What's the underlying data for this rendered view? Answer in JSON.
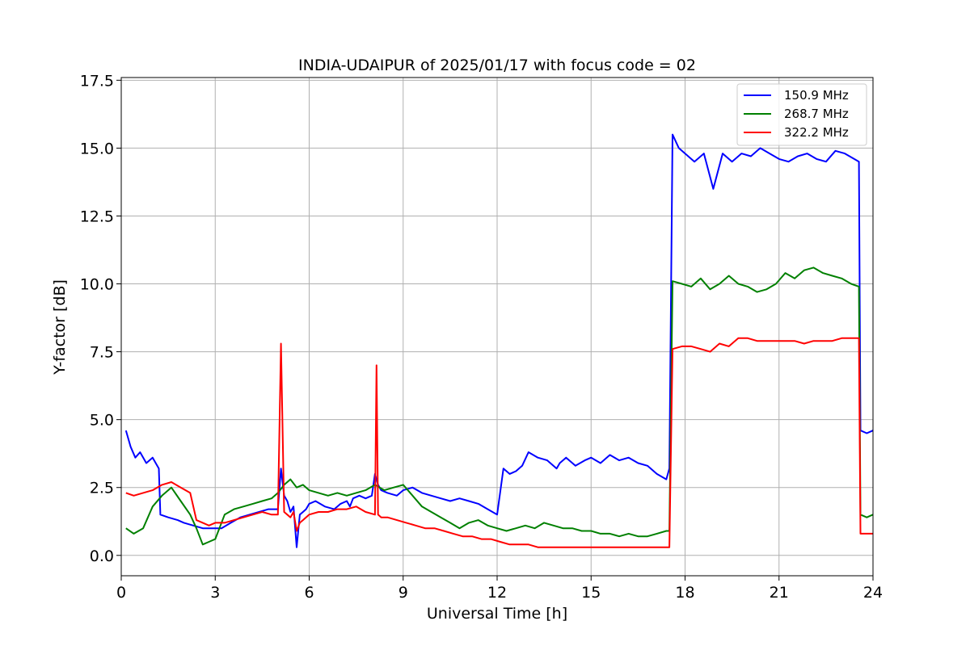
{
  "chart_data": {
    "type": "line",
    "title": "INDIA-UDAIPUR of 2025/01/17 with focus code = 02",
    "xlabel": "Universal Time [h]",
    "ylabel": "Y-factor [dB]",
    "xlim": [
      0,
      24
    ],
    "ylim": [
      -0.75,
      17.6
    ],
    "xticks": [
      0,
      3,
      6,
      9,
      12,
      15,
      18,
      21,
      24
    ],
    "yticks": [
      0.0,
      2.5,
      5.0,
      7.5,
      10.0,
      12.5,
      15.0,
      17.5
    ],
    "xtick_labels": [
      "0",
      "3",
      "6",
      "9",
      "12",
      "15",
      "18",
      "21",
      "24"
    ],
    "ytick_labels": [
      "0.0",
      "2.5",
      "5.0",
      "7.5",
      "10.0",
      "12.5",
      "15.0",
      "17.5"
    ],
    "grid": true,
    "legend_position": "top-right",
    "series": [
      {
        "name": "150.9 MHz",
        "color": "#0000ff",
        "x": [
          0.15,
          0.3,
          0.45,
          0.6,
          0.8,
          1.0,
          1.2,
          1.25,
          1.5,
          1.8,
          2.0,
          2.3,
          2.6,
          2.9,
          3.2,
          3.5,
          3.8,
          4.1,
          4.4,
          4.7,
          5.0,
          5.1,
          5.2,
          5.3,
          5.4,
          5.5,
          5.6,
          5.7,
          5.8,
          5.9,
          6.0,
          6.2,
          6.5,
          6.8,
          7.0,
          7.2,
          7.3,
          7.4,
          7.6,
          7.8,
          8.0,
          8.1,
          8.2,
          8.3,
          8.5,
          8.8,
          9.0,
          9.3,
          9.6,
          9.9,
          10.2,
          10.5,
          10.8,
          11.1,
          11.4,
          11.7,
          12.0,
          12.2,
          12.4,
          12.6,
          12.8,
          13.0,
          13.3,
          13.6,
          13.9,
          14.0,
          14.2,
          14.5,
          14.8,
          15.0,
          15.3,
          15.6,
          15.9,
          16.2,
          16.5,
          16.8,
          17.1,
          17.4,
          17.5,
          17.6,
          17.8,
          18.0,
          18.3,
          18.6,
          18.9,
          19.2,
          19.5,
          19.8,
          20.1,
          20.4,
          20.7,
          21.0,
          21.3,
          21.6,
          21.9,
          22.2,
          22.5,
          22.8,
          23.1,
          23.4,
          23.55,
          23.6,
          23.8,
          24.0
        ],
        "values": [
          4.6,
          4.0,
          3.6,
          3.8,
          3.4,
          3.6,
          3.2,
          1.5,
          1.4,
          1.3,
          1.2,
          1.1,
          1.0,
          1.0,
          1.0,
          1.2,
          1.4,
          1.5,
          1.6,
          1.7,
          1.7,
          3.2,
          2.2,
          2.0,
          1.6,
          1.8,
          0.3,
          1.5,
          1.6,
          1.7,
          1.9,
          2.0,
          1.8,
          1.7,
          1.9,
          2.0,
          1.8,
          2.1,
          2.2,
          2.1,
          2.2,
          3.0,
          2.6,
          2.4,
          2.3,
          2.2,
          2.4,
          2.5,
          2.3,
          2.2,
          2.1,
          2.0,
          2.1,
          2.0,
          1.9,
          1.7,
          1.5,
          3.2,
          3.0,
          3.1,
          3.3,
          3.8,
          3.6,
          3.5,
          3.2,
          3.4,
          3.6,
          3.3,
          3.5,
          3.6,
          3.4,
          3.7,
          3.5,
          3.6,
          3.4,
          3.3,
          3.0,
          2.8,
          3.2,
          15.5,
          15.0,
          14.8,
          14.5,
          14.8,
          13.5,
          14.8,
          14.5,
          14.8,
          14.7,
          15.0,
          14.8,
          14.6,
          14.5,
          14.7,
          14.8,
          14.6,
          14.5,
          14.9,
          14.8,
          14.6,
          14.5,
          4.6,
          4.5,
          4.6
        ]
      },
      {
        "name": "268.7 MHz",
        "color": "#008000",
        "x": [
          0.15,
          0.4,
          0.7,
          1.0,
          1.3,
          1.6,
          1.9,
          2.2,
          2.4,
          2.6,
          2.8,
          3.0,
          3.3,
          3.6,
          3.9,
          4.2,
          4.5,
          4.8,
          5.0,
          5.2,
          5.4,
          5.6,
          5.8,
          6.0,
          6.3,
          6.6,
          6.9,
          7.2,
          7.5,
          7.8,
          8.1,
          8.4,
          8.7,
          9.0,
          9.3,
          9.6,
          9.9,
          10.2,
          10.5,
          10.8,
          11.1,
          11.4,
          11.7,
          12.0,
          12.3,
          12.6,
          12.9,
          13.2,
          13.5,
          13.8,
          14.1,
          14.4,
          14.7,
          15.0,
          15.3,
          15.6,
          15.9,
          16.2,
          16.5,
          16.8,
          17.1,
          17.4,
          17.5,
          17.6,
          17.9,
          18.2,
          18.5,
          18.8,
          19.1,
          19.4,
          19.7,
          20.0,
          20.3,
          20.6,
          20.9,
          21.2,
          21.5,
          21.8,
          22.1,
          22.4,
          22.7,
          23.0,
          23.3,
          23.55,
          23.6,
          23.8,
          24.0
        ],
        "values": [
          1.0,
          0.8,
          1.0,
          1.8,
          2.2,
          2.5,
          2.0,
          1.5,
          1.0,
          0.4,
          0.5,
          0.6,
          1.5,
          1.7,
          1.8,
          1.9,
          2.0,
          2.1,
          2.3,
          2.6,
          2.8,
          2.5,
          2.6,
          2.4,
          2.3,
          2.2,
          2.3,
          2.2,
          2.3,
          2.4,
          2.6,
          2.4,
          2.5,
          2.6,
          2.2,
          1.8,
          1.6,
          1.4,
          1.2,
          1.0,
          1.2,
          1.3,
          1.1,
          1.0,
          0.9,
          1.0,
          1.1,
          1.0,
          1.2,
          1.1,
          1.0,
          1.0,
          0.9,
          0.9,
          0.8,
          0.8,
          0.7,
          0.8,
          0.7,
          0.7,
          0.8,
          0.9,
          0.9,
          10.1,
          10.0,
          9.9,
          10.2,
          9.8,
          10.0,
          10.3,
          10.0,
          9.9,
          9.7,
          9.8,
          10.0,
          10.4,
          10.2,
          10.5,
          10.6,
          10.4,
          10.3,
          10.2,
          10.0,
          9.9,
          1.5,
          1.4,
          1.5
        ]
      },
      {
        "name": "322.2 MHz",
        "color": "#ff0000",
        "x": [
          0.15,
          0.4,
          0.7,
          1.0,
          1.3,
          1.6,
          1.9,
          2.2,
          2.4,
          2.6,
          2.8,
          3.0,
          3.3,
          3.6,
          3.9,
          4.2,
          4.5,
          4.8,
          5.0,
          5.1,
          5.2,
          5.3,
          5.4,
          5.5,
          5.6,
          5.7,
          5.8,
          5.9,
          6.0,
          6.3,
          6.6,
          6.9,
          7.2,
          7.5,
          7.8,
          8.1,
          8.15,
          8.2,
          8.3,
          8.5,
          8.8,
          9.1,
          9.4,
          9.7,
          10.0,
          10.3,
          10.6,
          10.9,
          11.2,
          11.5,
          11.8,
          12.1,
          12.4,
          12.7,
          13.0,
          13.3,
          13.6,
          13.9,
          14.2,
          14.5,
          14.8,
          15.1,
          15.4,
          15.7,
          16.0,
          16.3,
          16.6,
          16.9,
          17.2,
          17.5,
          17.6,
          17.9,
          18.2,
          18.5,
          18.8,
          19.1,
          19.4,
          19.7,
          20.0,
          20.3,
          20.6,
          20.9,
          21.2,
          21.5,
          21.8,
          22.1,
          22.4,
          22.7,
          23.0,
          23.3,
          23.55,
          23.6,
          23.8,
          24.0
        ],
        "values": [
          2.3,
          2.2,
          2.3,
          2.4,
          2.6,
          2.7,
          2.5,
          2.3,
          1.3,
          1.2,
          1.1,
          1.2,
          1.2,
          1.3,
          1.4,
          1.5,
          1.6,
          1.5,
          1.5,
          7.8,
          1.6,
          1.5,
          1.4,
          1.6,
          0.9,
          1.2,
          1.3,
          1.4,
          1.5,
          1.6,
          1.6,
          1.7,
          1.7,
          1.8,
          1.6,
          1.5,
          7.0,
          1.5,
          1.4,
          1.4,
          1.3,
          1.2,
          1.1,
          1.0,
          1.0,
          0.9,
          0.8,
          0.7,
          0.7,
          0.6,
          0.6,
          0.5,
          0.4,
          0.4,
          0.4,
          0.3,
          0.3,
          0.3,
          0.3,
          0.3,
          0.3,
          0.3,
          0.3,
          0.3,
          0.3,
          0.3,
          0.3,
          0.3,
          0.3,
          0.3,
          7.6,
          7.7,
          7.7,
          7.6,
          7.5,
          7.8,
          7.7,
          8.0,
          8.0,
          7.9,
          7.9,
          7.9,
          7.9,
          7.9,
          7.8,
          7.9,
          7.9,
          7.9,
          8.0,
          8.0,
          8.0,
          0.8,
          0.8,
          0.8
        ]
      }
    ]
  }
}
